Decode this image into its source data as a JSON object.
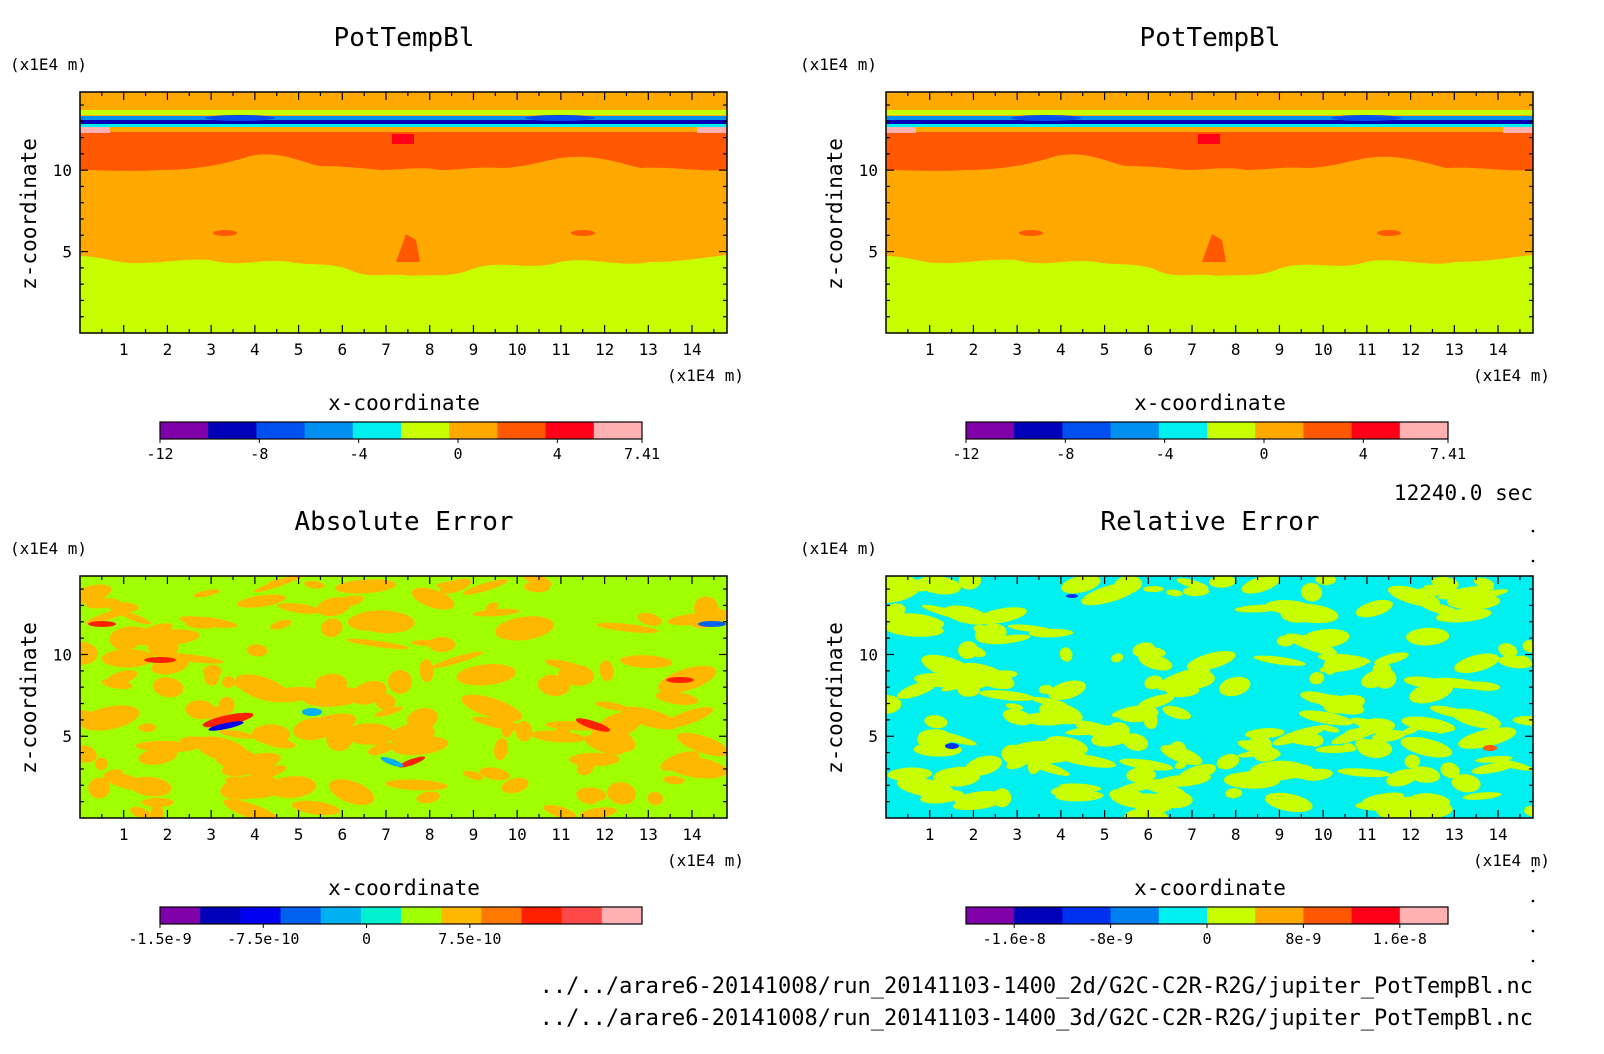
{
  "chart_data": [
    {
      "type": "heatmap",
      "title": "PotTempBl",
      "xlabel": "x-coordinate",
      "ylabel": "z-coordinate",
      "x_unit": "(x1E4 m)",
      "y_unit": "(x1E4 m)",
      "x_ticks": [
        "1",
        "2",
        "3",
        "4",
        "5",
        "6",
        "7",
        "8",
        "9",
        "10",
        "11",
        "12",
        "13",
        "14"
      ],
      "y_ticks": [
        "5",
        "10"
      ],
      "xlim": [
        0,
        14.8
      ],
      "ylim": [
        0,
        14.8
      ],
      "colorbar": {
        "colors": [
          "#7f00a8",
          "#0000b8",
          "#0050f0",
          "#0090f0",
          "#00f0f0",
          "#c8ff00",
          "#ffa800",
          "#ff5800",
          "#ff0018",
          "#ffb0b0"
        ],
        "tick_labels": [
          "-12",
          "-8",
          "-4",
          "0",
          "4",
          "7.41"
        ],
        "tick_values": [
          -12,
          -8,
          -4,
          0,
          4,
          7.41
        ],
        "range": [
          -12,
          7.41
        ]
      }
    },
    {
      "type": "heatmap",
      "title": "PotTempBl",
      "xlabel": "x-coordinate",
      "ylabel": "z-coordinate",
      "x_unit": "(x1E4 m)",
      "y_unit": "(x1E4 m)",
      "x_ticks": [
        "1",
        "2",
        "3",
        "4",
        "5",
        "6",
        "7",
        "8",
        "9",
        "10",
        "11",
        "12",
        "13",
        "14"
      ],
      "y_ticks": [
        "5",
        "10"
      ],
      "xlim": [
        0,
        14.8
      ],
      "ylim": [
        0,
        14.8
      ],
      "colorbar": {
        "colors": [
          "#7f00a8",
          "#0000b8",
          "#0050f0",
          "#0090f0",
          "#00f0f0",
          "#c8ff00",
          "#ffa800",
          "#ff5800",
          "#ff0018",
          "#ffb0b0"
        ],
        "tick_labels": [
          "-12",
          "-8",
          "-4",
          "0",
          "4",
          "7.41"
        ],
        "tick_values": [
          -12,
          -8,
          -4,
          0,
          4,
          7.41
        ],
        "range": [
          -12,
          7.41
        ]
      }
    },
    {
      "type": "heatmap",
      "title": "Absolute Error",
      "xlabel": "x-coordinate",
      "ylabel": "z-coordinate",
      "x_unit": "(x1E4 m)",
      "y_unit": "(x1E4 m)",
      "x_ticks": [
        "1",
        "2",
        "3",
        "4",
        "5",
        "6",
        "7",
        "8",
        "9",
        "10",
        "11",
        "12",
        "13",
        "14"
      ],
      "y_ticks": [
        "5",
        "10"
      ],
      "xlim": [
        0,
        14.8
      ],
      "ylim": [
        0,
        14.8
      ],
      "colorbar": {
        "colors": [
          "#7f00a8",
          "#0000b8",
          "#0000f0",
          "#0060f0",
          "#00b0f0",
          "#00f0d0",
          "#a0ff00",
          "#ffb800",
          "#ff7800",
          "#ff2000",
          "#ff4848",
          "#ffb0b0"
        ],
        "tick_labels": [
          "-1.5e-9",
          "-7.5e-10",
          "0",
          "7.5e-10"
        ],
        "tick_values": [
          -1.5e-09,
          -7.5e-10,
          0,
          7.5e-10
        ],
        "range": [
          -1.5e-09,
          2e-09
        ]
      }
    },
    {
      "type": "heatmap",
      "title": "Relative Error",
      "xlabel": "x-coordinate",
      "ylabel": "z-coordinate",
      "x_unit": "(x1E4 m)",
      "y_unit": "(x1E4 m)",
      "x_ticks": [
        "1",
        "2",
        "3",
        "4",
        "5",
        "6",
        "7",
        "8",
        "9",
        "10",
        "11",
        "12",
        "13",
        "14"
      ],
      "y_ticks": [
        "5",
        "10"
      ],
      "xlim": [
        0,
        14.8
      ],
      "ylim": [
        0,
        14.8
      ],
      "colorbar": {
        "colors": [
          "#7f00a8",
          "#0000b8",
          "#0030f0",
          "#0080f0",
          "#00f0f0",
          "#c8ff00",
          "#ffa800",
          "#ff5800",
          "#ff0018",
          "#ffb0b0"
        ],
        "tick_labels": [
          "-1.6e-8",
          "-8e-9",
          "0",
          "8e-9",
          "1.6e-8"
        ],
        "tick_values": [
          -1.6e-08,
          -8e-09,
          0,
          8e-09,
          1.6e-08
        ],
        "range": [
          -2e-08,
          2e-08
        ]
      }
    }
  ],
  "time_label": "12240.0 sec",
  "file_paths": [
    "../../arare6-20141008/run_20141103-1400_2d/G2C-C2R-R2G/jupiter_PotTempBl.nc",
    "../../arare6-20141008/run_20141103-1400_3d/G2C-C2R-R2G/jupiter_PotTempBl.nc"
  ]
}
